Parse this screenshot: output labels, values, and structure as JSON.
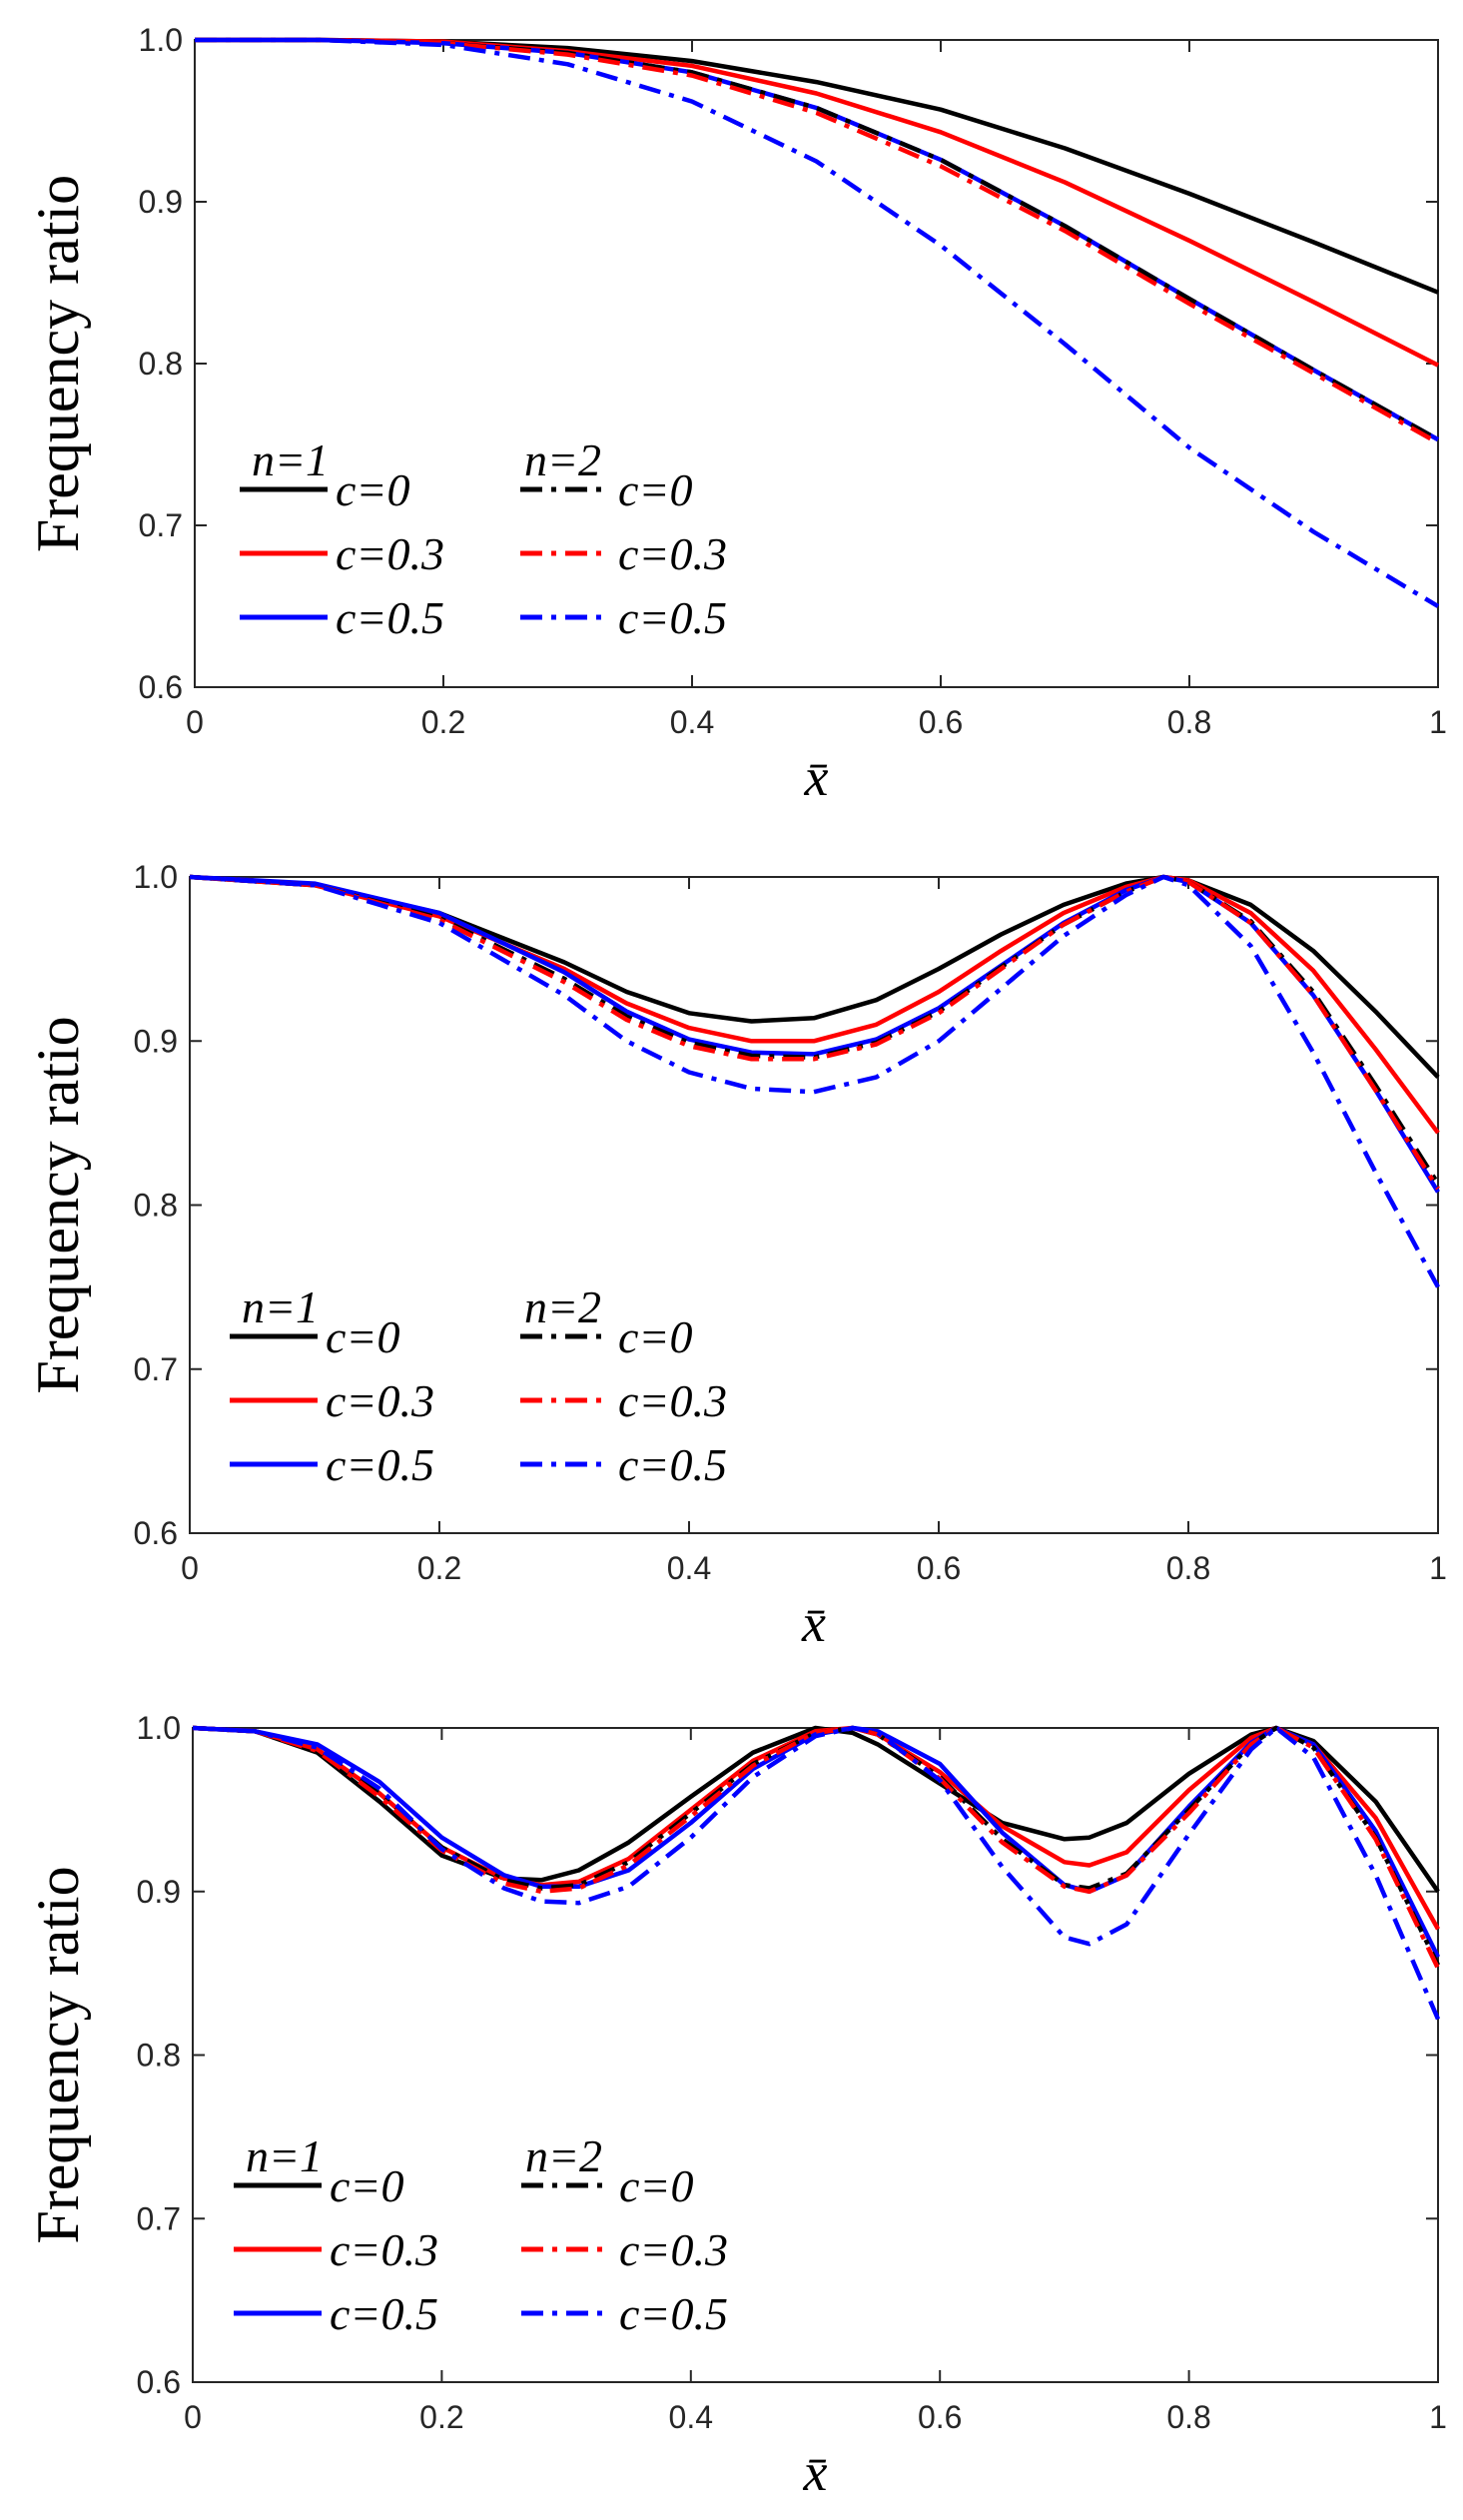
{
  "colors": {
    "c0": "#000000",
    "c03": "#ff0000",
    "c05": "#0000ff"
  },
  "chart_data": [
    {
      "type": "line",
      "panel": "top",
      "ylabel": "Frequency ratio",
      "xlabel": "x̄",
      "xlim": [
        0,
        1
      ],
      "ylim": [
        0.6,
        1.0
      ],
      "xticks": [
        "0",
        "0.2",
        "0.4",
        "0.6",
        "0.8",
        "1"
      ],
      "yticks": [
        "0.6",
        "0.7",
        "0.8",
        "0.9",
        "1.0"
      ],
      "legend": {
        "n1_title": "n=1",
        "n2_title": "n=2",
        "labels": [
          "c=0",
          "c=0.3",
          "c=0.5"
        ],
        "location": "lower-left"
      },
      "x": [
        0,
        0.1,
        0.2,
        0.3,
        0.4,
        0.5,
        0.6,
        0.7,
        0.8,
        0.9,
        1.0
      ],
      "series": [
        {
          "name": "n=1, c=0",
          "n": 1,
          "c": "0",
          "values": [
            1.0,
            1.0,
            0.999,
            0.995,
            0.987,
            0.974,
            0.957,
            0.933,
            0.905,
            0.875,
            0.844
          ]
        },
        {
          "name": "n=1, c=0.3",
          "n": 1,
          "c": "0.3",
          "values": [
            1.0,
            1.0,
            0.999,
            0.993,
            0.984,
            0.967,
            0.943,
            0.912,
            0.876,
            0.838,
            0.799
          ]
        },
        {
          "name": "n=1, c=0.5",
          "n": 1,
          "c": "0.5",
          "values": [
            1.0,
            1.0,
            0.998,
            0.992,
            0.98,
            0.958,
            0.926,
            0.885,
            0.84,
            0.796,
            0.753
          ]
        },
        {
          "name": "n=2, c=0",
          "n": 2,
          "c": "0",
          "values": [
            1.0,
            1.0,
            0.998,
            0.992,
            0.98,
            0.958,
            0.926,
            0.885,
            0.84,
            0.796,
            0.753
          ]
        },
        {
          "name": "n=2, c=0.3",
          "n": 2,
          "c": "0.3",
          "values": [
            1.0,
            1.0,
            0.998,
            0.991,
            0.978,
            0.955,
            0.922,
            0.882,
            0.837,
            0.794,
            0.751
          ]
        },
        {
          "name": "n=2, c=0.5",
          "n": 2,
          "c": "0.5",
          "values": [
            1.0,
            1.0,
            0.997,
            0.985,
            0.962,
            0.925,
            0.873,
            0.812,
            0.748,
            0.696,
            0.65
          ]
        }
      ]
    },
    {
      "type": "line",
      "panel": "middle",
      "ylabel": "Frequency ratio",
      "xlabel": "x̄",
      "xlim": [
        0,
        1
      ],
      "ylim": [
        0.6,
        1.0
      ],
      "xticks": [
        "0",
        "0.2",
        "0.4",
        "0.6",
        "0.8",
        "1"
      ],
      "yticks": [
        "0.6",
        "0.7",
        "0.8",
        "0.9",
        "1.0"
      ],
      "legend": {
        "n1_title": "n=1",
        "n2_title": "n=2",
        "labels": [
          "c=0",
          "c=0.3",
          "c=0.5"
        ],
        "location": "lower-left"
      },
      "x": [
        0,
        0.1,
        0.2,
        0.3,
        0.35,
        0.4,
        0.45,
        0.5,
        0.55,
        0.6,
        0.65,
        0.7,
        0.75,
        0.78,
        0.8,
        0.85,
        0.9,
        0.95,
        1.0
      ],
      "series": [
        {
          "name": "n=1, c=0",
          "n": 1,
          "c": "0",
          "values": [
            1.0,
            0.995,
            0.978,
            0.948,
            0.93,
            0.917,
            0.912,
            0.914,
            0.925,
            0.944,
            0.965,
            0.983,
            0.996,
            1.0,
            0.998,
            0.983,
            0.955,
            0.918,
            0.878
          ]
        },
        {
          "name": "n=1, c=0.3",
          "n": 1,
          "c": "0.3",
          "values": [
            1.0,
            0.995,
            0.976,
            0.944,
            0.923,
            0.908,
            0.9,
            0.9,
            0.91,
            0.93,
            0.955,
            0.978,
            0.994,
            1.0,
            0.998,
            0.978,
            0.943,
            0.895,
            0.844
          ]
        },
        {
          "name": "n=1, c=0.5",
          "n": 1,
          "c": "0.5",
          "values": [
            1.0,
            0.996,
            0.978,
            0.942,
            0.918,
            0.901,
            0.893,
            0.892,
            0.901,
            0.92,
            0.946,
            0.972,
            0.992,
            1.0,
            0.997,
            0.972,
            0.928,
            0.87,
            0.808
          ]
        },
        {
          "name": "n=2, c=0",
          "n": 2,
          "c": "0",
          "values": [
            1.0,
            0.995,
            0.975,
            0.938,
            0.915,
            0.899,
            0.891,
            0.89,
            0.899,
            0.918,
            0.945,
            0.971,
            0.991,
            1.0,
            0.997,
            0.973,
            0.93,
            0.873,
            0.813
          ]
        },
        {
          "name": "n=2, c=0.3",
          "n": 2,
          "c": "0.3",
          "values": [
            1.0,
            0.995,
            0.974,
            0.936,
            0.913,
            0.897,
            0.889,
            0.889,
            0.898,
            0.917,
            0.944,
            0.971,
            0.991,
            1.0,
            0.997,
            0.972,
            0.928,
            0.87,
            0.81
          ]
        },
        {
          "name": "n=2, c=0.5",
          "n": 2,
          "c": "0.5",
          "values": [
            1.0,
            0.995,
            0.972,
            0.928,
            0.9,
            0.881,
            0.871,
            0.869,
            0.878,
            0.9,
            0.932,
            0.964,
            0.989,
            1.0,
            0.995,
            0.958,
            0.893,
            0.82,
            0.75
          ]
        }
      ]
    },
    {
      "type": "line",
      "panel": "bottom",
      "ylabel": "Frequency ratio",
      "xlabel": "x̄",
      "xlim": [
        0,
        1
      ],
      "ylim": [
        0.6,
        1.0
      ],
      "xticks": [
        "0",
        "0.2",
        "0.4",
        "0.6",
        "0.8",
        "1"
      ],
      "yticks": [
        "0.6",
        "0.7",
        "0.8",
        "0.9",
        "1.0"
      ],
      "legend": {
        "n1_title": "n=1",
        "n2_title": "n=2",
        "labels": [
          "c=0",
          "c=0.3",
          "c=0.5"
        ],
        "location": "lower-left"
      },
      "x": [
        0,
        0.05,
        0.1,
        0.15,
        0.2,
        0.25,
        0.28,
        0.31,
        0.35,
        0.4,
        0.45,
        0.5,
        0.53,
        0.55,
        0.6,
        0.65,
        0.7,
        0.72,
        0.75,
        0.8,
        0.85,
        0.87,
        0.9,
        0.95,
        1.0
      ],
      "series": [
        {
          "name": "n=1, c=0",
          "n": 1,
          "c": "0",
          "values": [
            1.0,
            0.998,
            0.985,
            0.955,
            0.922,
            0.908,
            0.907,
            0.913,
            0.93,
            0.958,
            0.985,
            1.0,
            0.997,
            0.99,
            0.966,
            0.942,
            0.932,
            0.933,
            0.942,
            0.972,
            0.996,
            1.0,
            0.992,
            0.955,
            0.9
          ]
        },
        {
          "name": "n=1, c=0.3",
          "n": 1,
          "c": "0.3",
          "values": [
            1.0,
            0.998,
            0.987,
            0.96,
            0.927,
            0.908,
            0.904,
            0.906,
            0.92,
            0.95,
            0.98,
            0.998,
            1.0,
            0.996,
            0.973,
            0.94,
            0.918,
            0.916,
            0.924,
            0.962,
            0.994,
            1.0,
            0.99,
            0.945,
            0.877
          ]
        },
        {
          "name": "n=1, c=0.5",
          "n": 1,
          "c": "0.5",
          "values": [
            1.0,
            0.998,
            0.99,
            0.967,
            0.933,
            0.91,
            0.903,
            0.903,
            0.913,
            0.942,
            0.975,
            0.996,
            1.0,
            0.998,
            0.978,
            0.936,
            0.904,
            0.9,
            0.91,
            0.952,
            0.991,
            1.0,
            0.99,
            0.937,
            0.86
          ]
        },
        {
          "name": "n=2, c=0",
          "n": 2,
          "c": "0",
          "values": [
            1.0,
            0.998,
            0.987,
            0.96,
            0.927,
            0.907,
            0.902,
            0.904,
            0.918,
            0.948,
            0.978,
            0.997,
            1.0,
            0.996,
            0.97,
            0.932,
            0.904,
            0.902,
            0.911,
            0.95,
            0.99,
            1.0,
            0.988,
            0.933,
            0.855
          ]
        },
        {
          "name": "n=2, c=0.3",
          "n": 2,
          "c": "0.3",
          "values": [
            1.0,
            0.998,
            0.986,
            0.958,
            0.925,
            0.905,
            0.9,
            0.902,
            0.916,
            0.946,
            0.977,
            0.997,
            1.0,
            0.996,
            0.969,
            0.93,
            0.903,
            0.9,
            0.91,
            0.948,
            0.99,
            1.0,
            0.988,
            0.932,
            0.853
          ]
        },
        {
          "name": "n=2, c=0.5",
          "n": 2,
          "c": "0.5",
          "values": [
            1.0,
            0.998,
            0.988,
            0.963,
            0.926,
            0.902,
            0.894,
            0.893,
            0.903,
            0.933,
            0.97,
            0.995,
            1.0,
            0.997,
            0.968,
            0.915,
            0.872,
            0.868,
            0.88,
            0.935,
            0.987,
            1.0,
            0.982,
            0.91,
            0.822
          ]
        }
      ]
    }
  ]
}
